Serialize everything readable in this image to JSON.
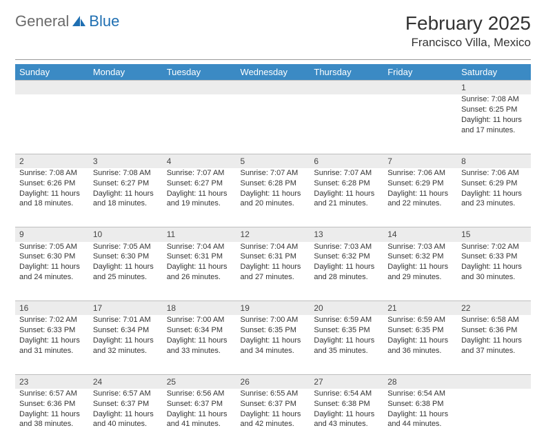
{
  "brand": {
    "part1": "General",
    "part2": "Blue",
    "accent_color": "#1f6fb2",
    "text_color": "#6a6a6a"
  },
  "header": {
    "month_title": "February 2025",
    "location": "Francisco Villa, Mexico"
  },
  "colors": {
    "header_bg": "#3b8ac4",
    "header_fg": "#ffffff",
    "daynum_bg": "#ececec",
    "rule": "#999999",
    "cell_border": "#bdbdbd"
  },
  "weekdays": [
    "Sunday",
    "Monday",
    "Tuesday",
    "Wednesday",
    "Thursday",
    "Friday",
    "Saturday"
  ],
  "weeks": [
    {
      "nums": [
        "",
        "",
        "",
        "",
        "",
        "",
        "1"
      ],
      "cells": [
        null,
        null,
        null,
        null,
        null,
        null,
        {
          "sunrise": "Sunrise: 7:08 AM",
          "sunset": "Sunset: 6:25 PM",
          "day1": "Daylight: 11 hours",
          "day2": "and 17 minutes."
        }
      ]
    },
    {
      "nums": [
        "2",
        "3",
        "4",
        "5",
        "6",
        "7",
        "8"
      ],
      "cells": [
        {
          "sunrise": "Sunrise: 7:08 AM",
          "sunset": "Sunset: 6:26 PM",
          "day1": "Daylight: 11 hours",
          "day2": "and 18 minutes."
        },
        {
          "sunrise": "Sunrise: 7:08 AM",
          "sunset": "Sunset: 6:27 PM",
          "day1": "Daylight: 11 hours",
          "day2": "and 18 minutes."
        },
        {
          "sunrise": "Sunrise: 7:07 AM",
          "sunset": "Sunset: 6:27 PM",
          "day1": "Daylight: 11 hours",
          "day2": "and 19 minutes."
        },
        {
          "sunrise": "Sunrise: 7:07 AM",
          "sunset": "Sunset: 6:28 PM",
          "day1": "Daylight: 11 hours",
          "day2": "and 20 minutes."
        },
        {
          "sunrise": "Sunrise: 7:07 AM",
          "sunset": "Sunset: 6:28 PM",
          "day1": "Daylight: 11 hours",
          "day2": "and 21 minutes."
        },
        {
          "sunrise": "Sunrise: 7:06 AM",
          "sunset": "Sunset: 6:29 PM",
          "day1": "Daylight: 11 hours",
          "day2": "and 22 minutes."
        },
        {
          "sunrise": "Sunrise: 7:06 AM",
          "sunset": "Sunset: 6:29 PM",
          "day1": "Daylight: 11 hours",
          "day2": "and 23 minutes."
        }
      ]
    },
    {
      "nums": [
        "9",
        "10",
        "11",
        "12",
        "13",
        "14",
        "15"
      ],
      "cells": [
        {
          "sunrise": "Sunrise: 7:05 AM",
          "sunset": "Sunset: 6:30 PM",
          "day1": "Daylight: 11 hours",
          "day2": "and 24 minutes."
        },
        {
          "sunrise": "Sunrise: 7:05 AM",
          "sunset": "Sunset: 6:30 PM",
          "day1": "Daylight: 11 hours",
          "day2": "and 25 minutes."
        },
        {
          "sunrise": "Sunrise: 7:04 AM",
          "sunset": "Sunset: 6:31 PM",
          "day1": "Daylight: 11 hours",
          "day2": "and 26 minutes."
        },
        {
          "sunrise": "Sunrise: 7:04 AM",
          "sunset": "Sunset: 6:31 PM",
          "day1": "Daylight: 11 hours",
          "day2": "and 27 minutes."
        },
        {
          "sunrise": "Sunrise: 7:03 AM",
          "sunset": "Sunset: 6:32 PM",
          "day1": "Daylight: 11 hours",
          "day2": "and 28 minutes."
        },
        {
          "sunrise": "Sunrise: 7:03 AM",
          "sunset": "Sunset: 6:32 PM",
          "day1": "Daylight: 11 hours",
          "day2": "and 29 minutes."
        },
        {
          "sunrise": "Sunrise: 7:02 AM",
          "sunset": "Sunset: 6:33 PM",
          "day1": "Daylight: 11 hours",
          "day2": "and 30 minutes."
        }
      ]
    },
    {
      "nums": [
        "16",
        "17",
        "18",
        "19",
        "20",
        "21",
        "22"
      ],
      "cells": [
        {
          "sunrise": "Sunrise: 7:02 AM",
          "sunset": "Sunset: 6:33 PM",
          "day1": "Daylight: 11 hours",
          "day2": "and 31 minutes."
        },
        {
          "sunrise": "Sunrise: 7:01 AM",
          "sunset": "Sunset: 6:34 PM",
          "day1": "Daylight: 11 hours",
          "day2": "and 32 minutes."
        },
        {
          "sunrise": "Sunrise: 7:00 AM",
          "sunset": "Sunset: 6:34 PM",
          "day1": "Daylight: 11 hours",
          "day2": "and 33 minutes."
        },
        {
          "sunrise": "Sunrise: 7:00 AM",
          "sunset": "Sunset: 6:35 PM",
          "day1": "Daylight: 11 hours",
          "day2": "and 34 minutes."
        },
        {
          "sunrise": "Sunrise: 6:59 AM",
          "sunset": "Sunset: 6:35 PM",
          "day1": "Daylight: 11 hours",
          "day2": "and 35 minutes."
        },
        {
          "sunrise": "Sunrise: 6:59 AM",
          "sunset": "Sunset: 6:35 PM",
          "day1": "Daylight: 11 hours",
          "day2": "and 36 minutes."
        },
        {
          "sunrise": "Sunrise: 6:58 AM",
          "sunset": "Sunset: 6:36 PM",
          "day1": "Daylight: 11 hours",
          "day2": "and 37 minutes."
        }
      ]
    },
    {
      "nums": [
        "23",
        "24",
        "25",
        "26",
        "27",
        "28",
        ""
      ],
      "cells": [
        {
          "sunrise": "Sunrise: 6:57 AM",
          "sunset": "Sunset: 6:36 PM",
          "day1": "Daylight: 11 hours",
          "day2": "and 38 minutes."
        },
        {
          "sunrise": "Sunrise: 6:57 AM",
          "sunset": "Sunset: 6:37 PM",
          "day1": "Daylight: 11 hours",
          "day2": "and 40 minutes."
        },
        {
          "sunrise": "Sunrise: 6:56 AM",
          "sunset": "Sunset: 6:37 PM",
          "day1": "Daylight: 11 hours",
          "day2": "and 41 minutes."
        },
        {
          "sunrise": "Sunrise: 6:55 AM",
          "sunset": "Sunset: 6:37 PM",
          "day1": "Daylight: 11 hours",
          "day2": "and 42 minutes."
        },
        {
          "sunrise": "Sunrise: 6:54 AM",
          "sunset": "Sunset: 6:38 PM",
          "day1": "Daylight: 11 hours",
          "day2": "and 43 minutes."
        },
        {
          "sunrise": "Sunrise: 6:54 AM",
          "sunset": "Sunset: 6:38 PM",
          "day1": "Daylight: 11 hours",
          "day2": "and 44 minutes."
        },
        null
      ]
    }
  ]
}
